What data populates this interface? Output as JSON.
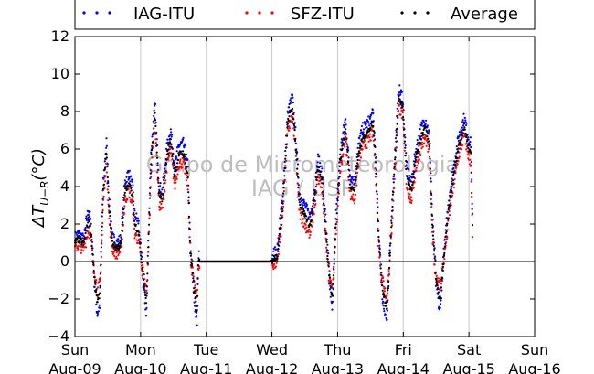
{
  "chart_data": {
    "type": "scatter",
    "ylabel": "ΔT",
    "ylabel_subscript": "U−R",
    "ylabel_unit": "(°C)",
    "ylim": [
      -4,
      12
    ],
    "yticks": [
      -4,
      -2,
      0,
      2,
      4,
      6,
      8,
      10,
      12
    ],
    "xlim": [
      0,
      7
    ],
    "xticks": [
      {
        "day": "Sun",
        "date": "Aug-09",
        "x": 0
      },
      {
        "day": "Mon",
        "date": "Aug-10",
        "x": 1
      },
      {
        "day": "Tue",
        "date": "Aug-11",
        "x": 2
      },
      {
        "day": "Wed",
        "date": "Aug-12",
        "x": 3
      },
      {
        "day": "Thu",
        "date": "Aug-13",
        "x": 4
      },
      {
        "day": "Fri",
        "date": "Aug-14",
        "x": 5
      },
      {
        "day": "Sat",
        "date": "Aug-15",
        "x": 6
      },
      {
        "day": "Sun",
        "date": "Aug-16",
        "x": 7
      }
    ],
    "grid": "vertical",
    "zero_line": 0,
    "legend_placement": "top",
    "watermark": [
      "Grupo de Micrometeorologia",
      "IAG / USP"
    ],
    "series": [
      {
        "name": "IAG-ITU",
        "color": "#0000ff",
        "offset": 0.5
      },
      {
        "name": "SFZ-ITU",
        "color": "#ff0000",
        "offset": -0.5
      },
      {
        "name": "Average",
        "color": "#000000",
        "offset": 0
      }
    ],
    "profile": [
      [
        0.0,
        1.0
      ],
      [
        0.06,
        1.2
      ],
      [
        0.13,
        0.9
      ],
      [
        0.21,
        2.3
      ],
      [
        0.25,
        1.4
      ],
      [
        0.29,
        -0.6
      ],
      [
        0.34,
        -2.2
      ],
      [
        0.38,
        -1.7
      ],
      [
        0.43,
        3.6
      ],
      [
        0.48,
        5.9
      ],
      [
        0.52,
        2.8
      ],
      [
        0.57,
        1.0
      ],
      [
        0.63,
        0.7
      ],
      [
        0.7,
        0.9
      ],
      [
        0.76,
        3.7
      ],
      [
        0.82,
        4.3
      ],
      [
        0.88,
        3.4
      ],
      [
        0.91,
        2.0
      ],
      [
        0.97,
        1.6
      ],
      [
        1.02,
        -0.3
      ],
      [
        1.09,
        -2.2
      ],
      [
        1.13,
        2.2
      ],
      [
        1.16,
        5.4
      ],
      [
        1.22,
        7.9
      ],
      [
        1.28,
        3.6
      ],
      [
        1.33,
        3.2
      ],
      [
        1.4,
        5.6
      ],
      [
        1.46,
        6.5
      ],
      [
        1.52,
        4.5
      ],
      [
        1.58,
        5.7
      ],
      [
        1.65,
        5.8
      ],
      [
        1.72,
        4.6
      ],
      [
        1.76,
        0.3
      ],
      [
        1.82,
        -1.6
      ],
      [
        1.86,
        -2.7
      ],
      [
        1.88,
        0.0
      ],
      [
        2.98,
        0.0
      ],
      [
        3.08,
        0.3
      ],
      [
        3.16,
        2.8
      ],
      [
        3.24,
        7.4
      ],
      [
        3.31,
        8.3
      ],
      [
        3.36,
        6.4
      ],
      [
        3.42,
        3.1
      ],
      [
        3.5,
        2.5
      ],
      [
        3.58,
        1.9
      ],
      [
        3.66,
        3.6
      ],
      [
        3.7,
        5.0
      ],
      [
        3.76,
        4.4
      ],
      [
        3.82,
        1.6
      ],
      [
        3.87,
        -0.7
      ],
      [
        3.92,
        -2.0
      ],
      [
        3.97,
        1.6
      ],
      [
        4.04,
        5.4
      ],
      [
        4.12,
        7.1
      ],
      [
        4.19,
        4.1
      ],
      [
        4.26,
        3.8
      ],
      [
        4.32,
        5.8
      ],
      [
        4.38,
        6.6
      ],
      [
        4.46,
        6.9
      ],
      [
        4.54,
        7.4
      ],
      [
        4.58,
        5.2
      ],
      [
        4.62,
        1.6
      ],
      [
        4.68,
        -1.4
      ],
      [
        4.75,
        -2.6
      ],
      [
        4.8,
        0.6
      ],
      [
        4.86,
        4.6
      ],
      [
        4.93,
        8.7
      ],
      [
        4.99,
        8.3
      ],
      [
        5.05,
        4.6
      ],
      [
        5.12,
        3.7
      ],
      [
        5.2,
        5.6
      ],
      [
        5.28,
        6.7
      ],
      [
        5.34,
        7.1
      ],
      [
        5.4,
        6.2
      ],
      [
        5.44,
        2.1
      ],
      [
        5.5,
        -1.0
      ],
      [
        5.56,
        -2.1
      ],
      [
        5.62,
        0.3
      ],
      [
        5.7,
        3.0
      ],
      [
        5.77,
        4.6
      ],
      [
        5.84,
        6.1
      ],
      [
        5.93,
        7.2
      ],
      [
        6.0,
        6.0
      ],
      [
        6.03,
        5.8
      ],
      [
        6.06,
        0.8
      ]
    ]
  }
}
